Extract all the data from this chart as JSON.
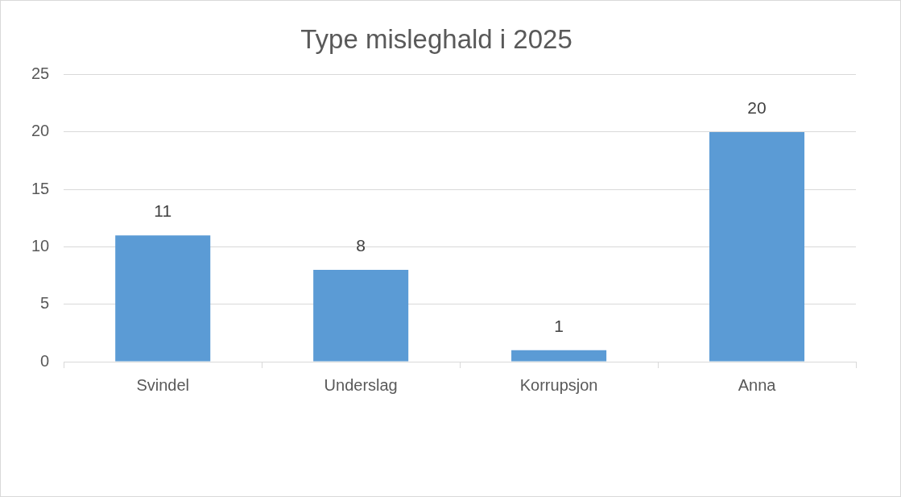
{
  "chart_data": {
    "type": "bar",
    "title": "Type misleghald i 2025",
    "categories": [
      "Svindel",
      "Underslag",
      "Korrupsjon",
      "Anna"
    ],
    "values": [
      11,
      8,
      1,
      20
    ],
    "color": "#5b9bd5",
    "ylim": [
      0,
      25
    ],
    "yticks": [
      0,
      5,
      10,
      15,
      20,
      25
    ],
    "grid": "y",
    "data_labels": true,
    "legend": false
  }
}
